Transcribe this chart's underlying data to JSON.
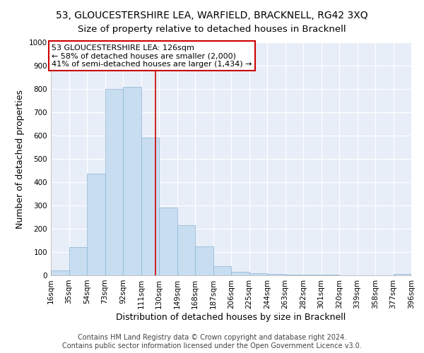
{
  "title": "53, GLOUCESTERSHIRE LEA, WARFIELD, BRACKNELL, RG42 3XQ",
  "subtitle": "Size of property relative to detached houses in Bracknell",
  "xlabel": "Distribution of detached houses by size in Bracknell",
  "ylabel": "Number of detached properties",
  "bar_edges": [
    16,
    35,
    54,
    73,
    92,
    111,
    130,
    149,
    168,
    187,
    206,
    225,
    244,
    263,
    282,
    301,
    320,
    339,
    358,
    377,
    396
  ],
  "bar_heights": [
    20,
    120,
    435,
    800,
    810,
    590,
    290,
    215,
    125,
    40,
    15,
    10,
    5,
    3,
    2,
    2,
    1,
    1,
    1,
    5
  ],
  "bar_color": "#c8ddf0",
  "bar_edgecolor": "#8ab4d4",
  "property_line_x": 126,
  "property_line_color": "#cc0000",
  "annotation_title": "53 GLOUCESTERSHIRE LEA: 126sqm",
  "annotation_line1": "← 58% of detached houses are smaller (2,000)",
  "annotation_line2": "41% of semi-detached houses are larger (1,434) →",
  "annotation_box_facecolor": "#ffffff",
  "annotation_box_edgecolor": "#cc0000",
  "ylim": [
    0,
    1000
  ],
  "yticks": [
    0,
    100,
    200,
    300,
    400,
    500,
    600,
    700,
    800,
    900,
    1000
  ],
  "tick_labels": [
    "16sqm",
    "35sqm",
    "54sqm",
    "73sqm",
    "92sqm",
    "111sqm",
    "130sqm",
    "149sqm",
    "168sqm",
    "187sqm",
    "206sqm",
    "225sqm",
    "244sqm",
    "263sqm",
    "282sqm",
    "301sqm",
    "320sqm",
    "339sqm",
    "358sqm",
    "377sqm",
    "396sqm"
  ],
  "footer_line1": "Contains HM Land Registry data © Crown copyright and database right 2024.",
  "footer_line2": "Contains public sector information licensed under the Open Government Licence v3.0.",
  "bg_color": "#ffffff",
  "plot_bg_color": "#e8eef8",
  "grid_color": "#ffffff",
  "title_fontsize": 10,
  "subtitle_fontsize": 9.5,
  "axis_label_fontsize": 9,
  "tick_fontsize": 7.5,
  "footer_fontsize": 7,
  "annotation_fontsize": 8
}
